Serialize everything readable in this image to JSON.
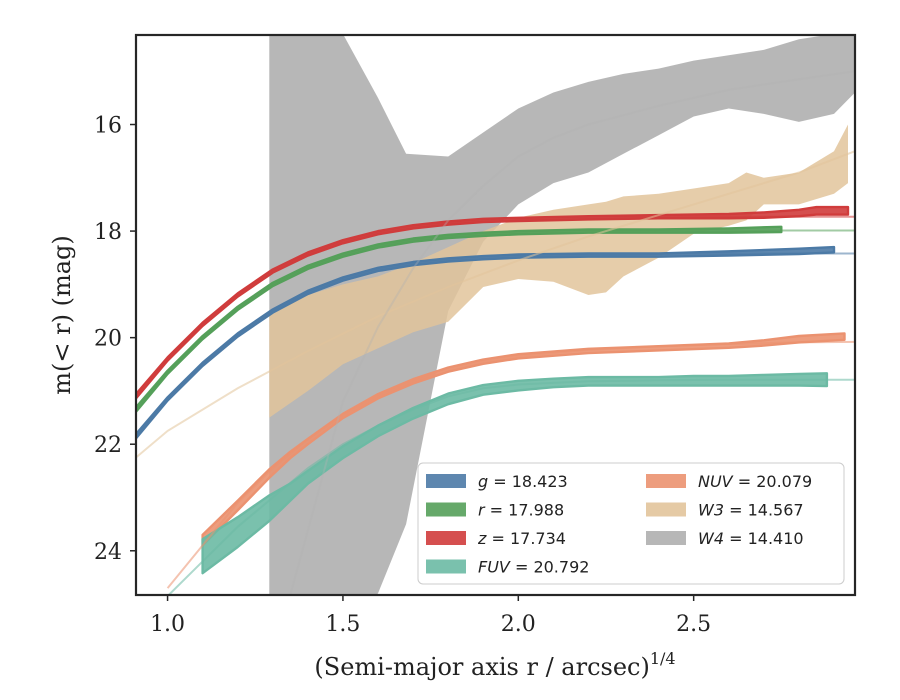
{
  "chart_data": {
    "type": "line",
    "xlabel": "(Semi-major axis r / arcsec)",
    "xlabel_sup": "1/4",
    "ylabel": "m(< r) (mag)",
    "xlim": [
      0.91,
      2.96
    ],
    "ylim": [
      24.83,
      14.32
    ],
    "y_inverted": true,
    "x_ticks": [
      1.0,
      1.5,
      2.0,
      2.5
    ],
    "x_tick_labels": [
      "1.0",
      "1.5",
      "2.0",
      "2.5"
    ],
    "y_ticks": [
      16,
      18,
      20,
      22,
      24
    ],
    "y_tick_labels": [
      "16",
      "18",
      "20",
      "22",
      "24"
    ],
    "legend_position": "lower-right",
    "grid": false,
    "series": [
      {
        "name": "g",
        "legend": "g = 18.423",
        "color": "#4c7aa6",
        "model_x": [
          0.91,
          1.0,
          1.1,
          1.2,
          1.3,
          1.4,
          1.5,
          1.6,
          1.7,
          1.8,
          1.9,
          2.0,
          2.2,
          2.4,
          2.6,
          2.8,
          2.96
        ],
        "model_y": [
          21.85,
          21.15,
          20.5,
          19.95,
          19.5,
          19.15,
          18.9,
          18.72,
          18.61,
          18.54,
          18.5,
          18.47,
          18.45,
          18.43,
          18.42,
          18.42,
          18.42
        ],
        "band_x": [
          0.91,
          1.0,
          1.1,
          1.2,
          1.3,
          1.4,
          1.5,
          1.6,
          1.7,
          1.8,
          1.9,
          2.0,
          2.2,
          2.4,
          2.6,
          2.8,
          2.9
        ],
        "band_y": [
          21.85,
          21.15,
          20.5,
          19.95,
          19.5,
          19.15,
          18.9,
          18.72,
          18.61,
          18.54,
          18.5,
          18.47,
          18.45,
          18.45,
          18.42,
          18.38,
          18.35
        ],
        "band_halfwidth": [
          0.04,
          0.03,
          0.03,
          0.03,
          0.03,
          0.03,
          0.03,
          0.03,
          0.03,
          0.03,
          0.03,
          0.03,
          0.03,
          0.03,
          0.04,
          0.05,
          0.05
        ]
      },
      {
        "name": "r",
        "legend": "r = 17.988",
        "color": "#55a05a",
        "model_x": [
          0.91,
          1.0,
          1.1,
          1.2,
          1.3,
          1.4,
          1.5,
          1.6,
          1.7,
          1.8,
          1.9,
          2.0,
          2.2,
          2.4,
          2.6,
          2.8,
          2.96
        ],
        "model_y": [
          21.35,
          20.65,
          20.0,
          19.45,
          19.0,
          18.68,
          18.45,
          18.28,
          18.17,
          18.1,
          18.06,
          18.03,
          18.0,
          17.99,
          17.99,
          17.99,
          17.99
        ],
        "band_x": [
          0.91,
          1.0,
          1.1,
          1.2,
          1.3,
          1.4,
          1.5,
          1.6,
          1.7,
          1.8,
          1.9,
          2.0,
          2.2,
          2.4,
          2.6,
          2.75
        ],
        "band_y": [
          21.35,
          20.65,
          20.0,
          19.45,
          19.0,
          18.68,
          18.45,
          18.28,
          18.17,
          18.1,
          18.06,
          18.03,
          18.0,
          18.0,
          17.99,
          17.97
        ],
        "band_halfwidth": [
          0.04,
          0.03,
          0.03,
          0.03,
          0.03,
          0.03,
          0.03,
          0.03,
          0.03,
          0.03,
          0.03,
          0.03,
          0.03,
          0.03,
          0.04,
          0.05
        ]
      },
      {
        "name": "z",
        "legend": "z = 17.734",
        "color": "#d03c3c",
        "model_x": [
          0.91,
          1.0,
          1.1,
          1.2,
          1.3,
          1.4,
          1.5,
          1.6,
          1.7,
          1.8,
          1.9,
          2.0,
          2.2,
          2.4,
          2.6,
          2.8,
          2.96
        ],
        "model_y": [
          21.1,
          20.4,
          19.75,
          19.2,
          18.75,
          18.43,
          18.2,
          18.03,
          17.92,
          17.85,
          17.8,
          17.78,
          17.75,
          17.74,
          17.73,
          17.73,
          17.73
        ],
        "band_x": [
          0.91,
          1.0,
          1.1,
          1.2,
          1.3,
          1.4,
          1.5,
          1.6,
          1.7,
          1.8,
          1.9,
          2.0,
          2.2,
          2.4,
          2.6,
          2.7,
          2.8,
          2.85,
          2.94
        ],
        "band_y": [
          21.1,
          20.4,
          19.75,
          19.2,
          18.75,
          18.43,
          18.2,
          18.03,
          17.92,
          17.85,
          17.8,
          17.78,
          17.75,
          17.73,
          17.72,
          17.7,
          17.66,
          17.62,
          17.62
        ],
        "band_halfwidth": [
          0.04,
          0.03,
          0.03,
          0.03,
          0.03,
          0.03,
          0.03,
          0.03,
          0.03,
          0.03,
          0.03,
          0.03,
          0.03,
          0.03,
          0.04,
          0.05,
          0.06,
          0.07,
          0.07
        ]
      },
      {
        "name": "FUV",
        "legend": "FUV = 20.792",
        "color": "#6cbaa4",
        "model_x": [
          1.0,
          1.1,
          1.2,
          1.3,
          1.4,
          1.5,
          1.6,
          1.7,
          1.8,
          1.9,
          2.0,
          2.2,
          2.4,
          2.6,
          2.8,
          2.96
        ],
        "model_y": [
          24.85,
          24.2,
          23.55,
          23.0,
          22.45,
          22.0,
          21.65,
          21.35,
          21.1,
          20.95,
          20.88,
          20.82,
          20.8,
          20.79,
          20.79,
          20.79
        ],
        "band_x": [
          1.1,
          1.2,
          1.29,
          1.35,
          1.4,
          1.5,
          1.6,
          1.7,
          1.8,
          1.9,
          2.0,
          2.1,
          2.2,
          2.3,
          2.4,
          2.5,
          2.6,
          2.7,
          2.8,
          2.88
        ],
        "band_y": [
          24.1,
          23.65,
          23.2,
          22.9,
          22.62,
          22.15,
          21.75,
          21.42,
          21.15,
          20.98,
          20.9,
          20.85,
          20.82,
          20.82,
          20.82,
          20.81,
          20.81,
          20.8,
          20.79,
          20.79
        ],
        "band_halfwidth": [
          0.32,
          0.28,
          0.24,
          0.16,
          0.12,
          0.11,
          0.1,
          0.1,
          0.1,
          0.09,
          0.09,
          0.08,
          0.08,
          0.08,
          0.08,
          0.09,
          0.09,
          0.1,
          0.11,
          0.12
        ]
      },
      {
        "name": "NUV",
        "legend": "NUV = 20.079",
        "color": "#eb9270",
        "model_x": [
          1.0,
          1.1,
          1.2,
          1.3,
          1.4,
          1.5,
          1.6,
          1.7,
          1.8,
          1.9,
          2.0,
          2.2,
          2.4,
          2.6,
          2.8,
          2.96
        ],
        "model_y": [
          24.7,
          23.9,
          23.1,
          22.45,
          21.9,
          21.45,
          21.1,
          20.82,
          20.6,
          20.45,
          20.35,
          20.23,
          20.16,
          20.12,
          20.09,
          20.08
        ],
        "band_x": [
          1.1,
          1.2,
          1.29,
          1.35,
          1.4,
          1.5,
          1.6,
          1.7,
          1.8,
          1.9,
          2.0,
          2.2,
          2.4,
          2.6,
          2.7,
          2.8,
          2.93
        ],
        "band_y": [
          23.8,
          23.15,
          22.55,
          22.2,
          21.95,
          21.47,
          21.1,
          20.82,
          20.6,
          20.45,
          20.35,
          20.25,
          20.2,
          20.15,
          20.1,
          20.03,
          19.98
        ],
        "band_halfwidth": [
          0.1,
          0.09,
          0.08,
          0.06,
          0.05,
          0.04,
          0.04,
          0.04,
          0.04,
          0.04,
          0.04,
          0.04,
          0.04,
          0.04,
          0.05,
          0.06,
          0.06
        ]
      },
      {
        "name": "W3",
        "legend": "W3 = 14.567",
        "color": "#e2c49b",
        "model_x": [
          0.91,
          1.0,
          1.2,
          1.4,
          1.6,
          1.8,
          2.0,
          2.2,
          2.4,
          2.6,
          2.8,
          2.96
        ],
        "model_y": [
          22.25,
          21.75,
          20.95,
          20.25,
          19.6,
          19.05,
          18.55,
          18.1,
          17.7,
          17.3,
          16.9,
          16.5
        ],
        "band_x": [
          1.29,
          1.4,
          1.5,
          1.6,
          1.7,
          1.8,
          1.9,
          2.0,
          2.1,
          2.2,
          2.25,
          2.3,
          2.4,
          2.5,
          2.6,
          2.65,
          2.7,
          2.8,
          2.9,
          2.94
        ],
        "band_upper": [
          19.5,
          19.2,
          19.0,
          18.85,
          18.6,
          18.3,
          18.0,
          17.75,
          17.6,
          17.5,
          17.45,
          17.35,
          17.3,
          17.2,
          17.1,
          16.9,
          17.0,
          16.9,
          16.5,
          16.0
        ],
        "band_lower": [
          21.5,
          21.0,
          20.5,
          20.2,
          19.9,
          19.7,
          19.05,
          18.9,
          18.95,
          19.2,
          19.15,
          18.85,
          18.5,
          18.05,
          17.9,
          17.8,
          17.5,
          17.5,
          17.3,
          17.1
        ]
      },
      {
        "name": "W4",
        "legend": "W4 = 14.410",
        "color": "#b3b3b3",
        "model_x": [
          1.35,
          1.5,
          1.6,
          1.7,
          1.8,
          1.9,
          2.0,
          2.1,
          2.2,
          2.4,
          2.6,
          2.8,
          2.96
        ],
        "model_y": [
          24.83,
          21.2,
          19.8,
          18.7,
          17.8,
          17.15,
          16.6,
          16.25,
          16.0,
          15.65,
          15.35,
          15.15,
          15.0
        ],
        "band_x": [
          1.29,
          1.35,
          1.45,
          1.5,
          1.6,
          1.68,
          1.8,
          1.9,
          2.0,
          2.1,
          2.2,
          2.3,
          2.4,
          2.5,
          2.6,
          2.7,
          2.8,
          2.9,
          2.96
        ],
        "band_upper": [
          10.0,
          13.0,
          14.3,
          14.3,
          15.5,
          16.55,
          16.6,
          16.15,
          15.7,
          15.4,
          15.2,
          15.05,
          14.95,
          14.8,
          14.7,
          14.6,
          14.4,
          14.3,
          14.3
        ],
        "band_lower": [
          26.0,
          25.5,
          25.4,
          25.4,
          24.8,
          23.5,
          19.5,
          18.2,
          17.5,
          17.1,
          16.9,
          16.55,
          16.2,
          15.85,
          15.7,
          15.8,
          15.95,
          15.8,
          15.4
        ]
      }
    ]
  }
}
